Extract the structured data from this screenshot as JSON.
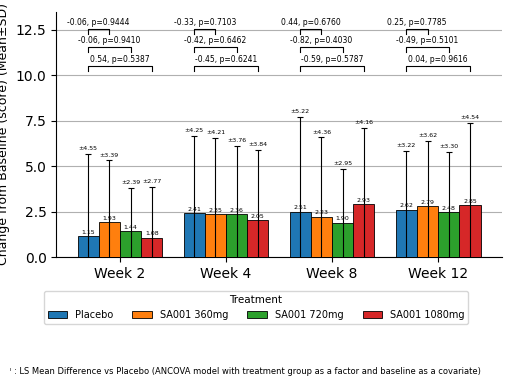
{
  "chart_data": {
    "type": "bar",
    "categories": [
      "Week 2",
      "Week 4",
      "Week 8",
      "Week 12"
    ],
    "series": [
      {
        "name": "Placebo",
        "values": [
          1.15,
          2.41,
          2.51,
          2.62
        ],
        "value_labels": [
          "1.15",
          "2.41",
          "2.51",
          "2.62"
        ],
        "errors": [
          4.55,
          4.25,
          5.22,
          3.22
        ],
        "error_labels": [
          "±4.55",
          "±4.25",
          "±5.22",
          "±3.22"
        ]
      },
      {
        "name": "SA001 360mg",
        "values": [
          1.93,
          2.35,
          2.23,
          2.79
        ],
        "value_labels": [
          "1.93",
          "2.35",
          "2.23",
          "2.79"
        ],
        "errors": [
          3.39,
          4.21,
          4.36,
          3.62
        ],
        "error_labels": [
          "±3.39",
          "±4.21",
          "±4.36",
          "±3.62"
        ]
      },
      {
        "name": "SA001 720mg",
        "values": [
          1.44,
          2.36,
          1.9,
          2.48
        ],
        "value_labels": [
          "1.44",
          "2.36",
          "1.90",
          "2.48"
        ],
        "errors": [
          2.39,
          3.76,
          2.95,
          3.3
        ],
        "error_labels": [
          "±2.39",
          "±3.76",
          "±2.95",
          "±3.30"
        ]
      },
      {
        "name": "SA001 1080mg",
        "values": [
          1.08,
          2.05,
          2.93,
          2.85
        ],
        "value_labels": [
          "1.08",
          "2.05",
          "2.93",
          "2.85"
        ],
        "errors": [
          2.77,
          3.84,
          4.16,
          4.54
        ],
        "error_labels": [
          "±2.77",
          "±3.84",
          "±4.16",
          "±4.54"
        ]
      }
    ],
    "annotations": [
      {
        "reference": "Placebo",
        "target": "SA001 360mg",
        "labels": [
          "-0.06, p=0.9444",
          "-0.33, p=0.7103",
          "0.44, p=0.6760",
          "0.25, p=0.7785"
        ]
      },
      {
        "reference": "Placebo",
        "target": "SA001 720mg",
        "labels": [
          "-0.06, p=0.9410",
          "-0.42, p=0.6462",
          "-0.82, p=0.4030",
          "-0.49, p=0.5101"
        ]
      },
      {
        "reference": "Placebo",
        "target": "SA001 1080mg",
        "labels": [
          "0.54, p=0.5387",
          "-0.45, p=0.6241",
          "-0.59, p=0.5787",
          "0.04, p=0.9616"
        ]
      }
    ],
    "y_label": "Change from Baseline (score) (Mean±SD)",
    "legend_title": "Treatment",
    "footnote": "ˡ : LS Mean Difference vs Placebo (ANCOVA model with treatment group as a factor and baseline as a covariate)",
    "ylim": [
      0,
      13.5
    ],
    "yticks": [
      {
        "value": 0,
        "label": "0.0"
      },
      2.5,
      {
        "value": 5,
        "label": "5.0"
      },
      7.5,
      {
        "value": 10,
        "label": "10.0"
      },
      12.5
    ],
    "grid": true,
    "data_labels": true
  }
}
